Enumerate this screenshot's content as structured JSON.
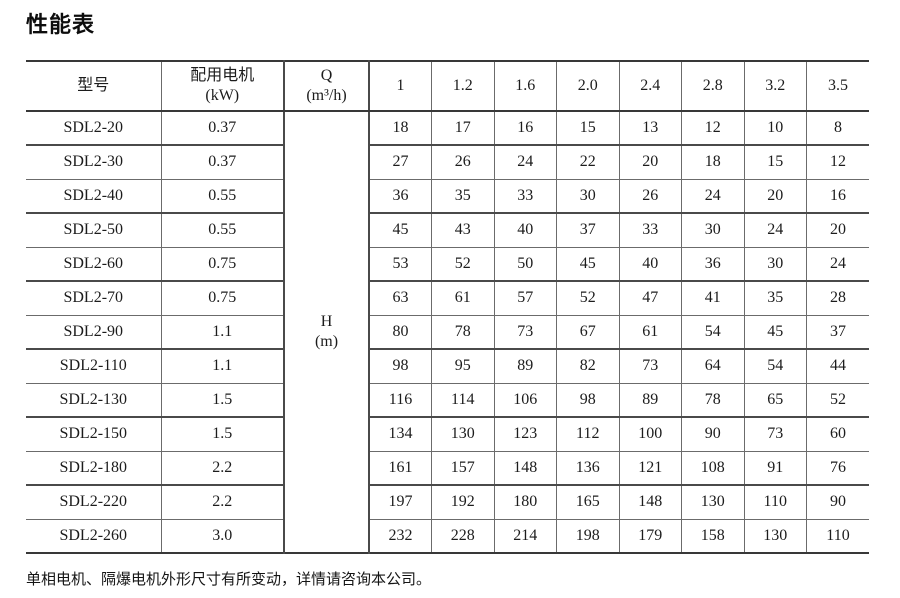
{
  "title": "性能表",
  "footer_note": "单相电机、隔爆电机外形尺寸有所变动，详情请咨询本公司。",
  "table": {
    "header": {
      "model": "型号",
      "motor_line1": "配用电机",
      "motor_line2": "(kW)",
      "q_line1": "Q",
      "q_line2": "(m³/h)"
    },
    "h_cell": {
      "line1": "H",
      "line2": "(m)"
    },
    "flow_values": [
      "1",
      "1.2",
      "1.6",
      "2.0",
      "2.4",
      "2.8",
      "3.2",
      "3.5"
    ],
    "rows": [
      {
        "model": "SDL2-20",
        "power": "0.37",
        "heads": [
          "18",
          "17",
          "16",
          "15",
          "13",
          "12",
          "10",
          "8"
        ]
      },
      {
        "model": "SDL2-30",
        "power": "0.37",
        "heads": [
          "27",
          "26",
          "24",
          "22",
          "20",
          "18",
          "15",
          "12"
        ]
      },
      {
        "model": "SDL2-40",
        "power": "0.55",
        "heads": [
          "36",
          "35",
          "33",
          "30",
          "26",
          "24",
          "20",
          "16"
        ]
      },
      {
        "model": "SDL2-50",
        "power": "0.55",
        "heads": [
          "45",
          "43",
          "40",
          "37",
          "33",
          "30",
          "24",
          "20"
        ]
      },
      {
        "model": "SDL2-60",
        "power": "0.75",
        "heads": [
          "53",
          "52",
          "50",
          "45",
          "40",
          "36",
          "30",
          "24"
        ]
      },
      {
        "model": "SDL2-70",
        "power": "0.75",
        "heads": [
          "63",
          "61",
          "57",
          "52",
          "47",
          "41",
          "35",
          "28"
        ]
      },
      {
        "model": "SDL2-90",
        "power": "1.1",
        "heads": [
          "80",
          "78",
          "73",
          "67",
          "61",
          "54",
          "45",
          "37"
        ]
      },
      {
        "model": "SDL2-110",
        "power": "1.1",
        "heads": [
          "98",
          "95",
          "89",
          "82",
          "73",
          "64",
          "54",
          "44"
        ]
      },
      {
        "model": "SDL2-130",
        "power": "1.5",
        "heads": [
          "116",
          "114",
          "106",
          "98",
          "89",
          "78",
          "65",
          "52"
        ]
      },
      {
        "model": "SDL2-150",
        "power": "1.5",
        "heads": [
          "134",
          "130",
          "123",
          "112",
          "100",
          "90",
          "73",
          "60"
        ]
      },
      {
        "model": "SDL2-180",
        "power": "2.2",
        "heads": [
          "161",
          "157",
          "148",
          "136",
          "121",
          "108",
          "91",
          "76"
        ]
      },
      {
        "model": "SDL2-220",
        "power": "2.2",
        "heads": [
          "197",
          "192",
          "180",
          "165",
          "148",
          "130",
          "110",
          "90"
        ]
      },
      {
        "model": "SDL2-260",
        "power": "3.0",
        "heads": [
          "232",
          "228",
          "214",
          "198",
          "179",
          "158",
          "130",
          "110"
        ]
      }
    ]
  }
}
